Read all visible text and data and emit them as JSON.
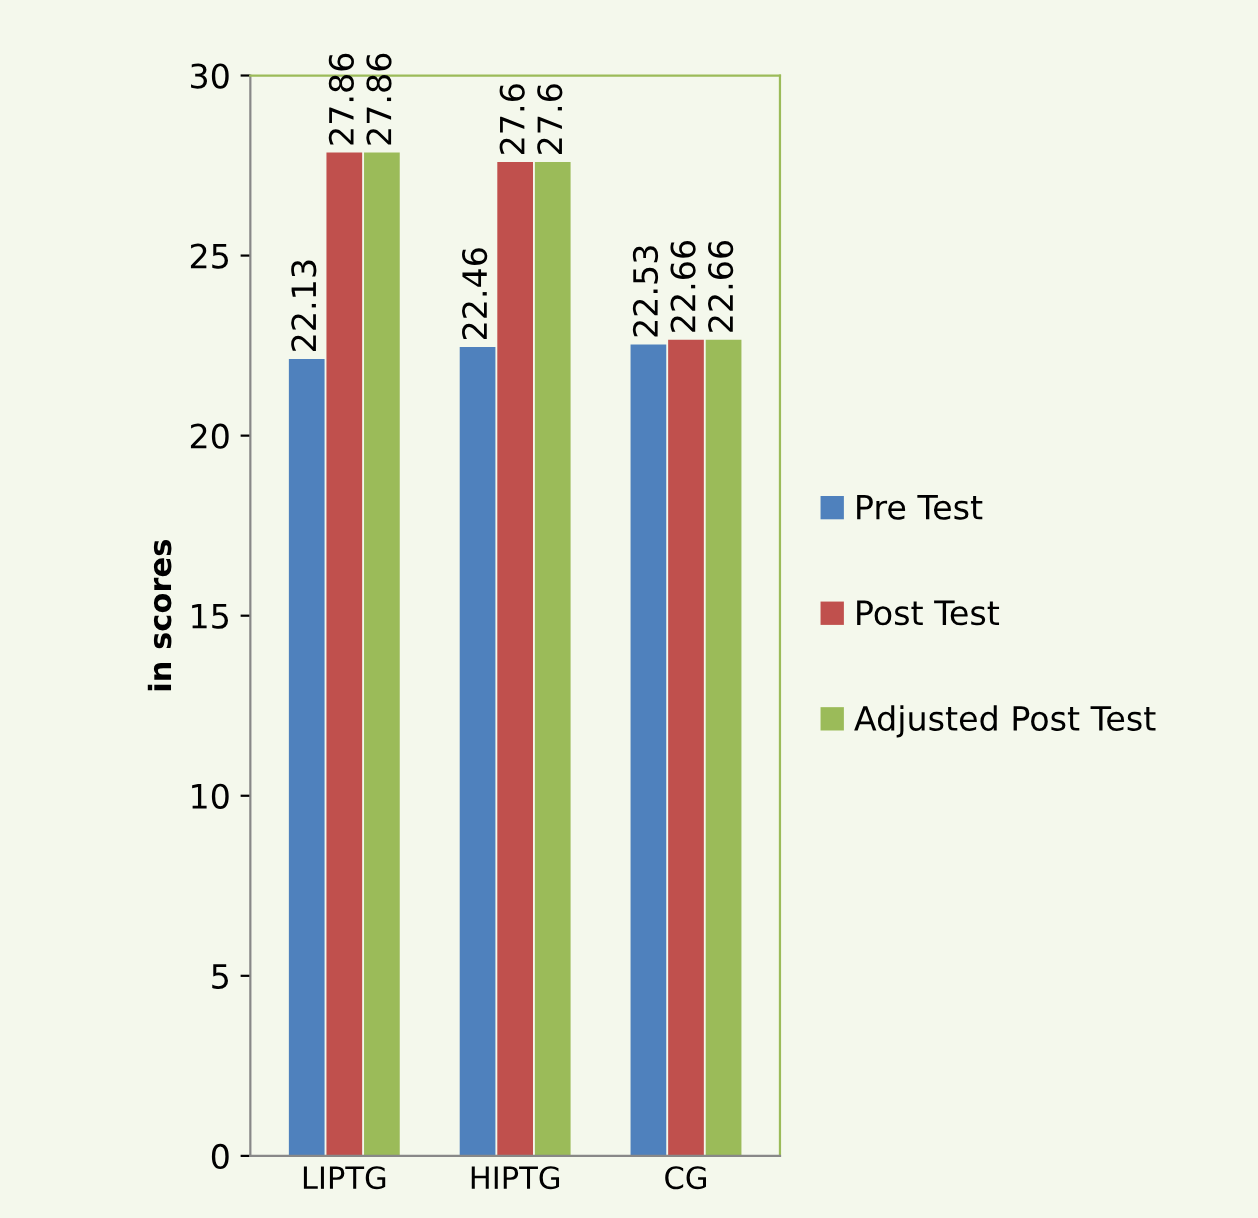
{
  "chart_data": {
    "type": "bar",
    "ylabel": "in scores",
    "categories": [
      "LIPTG",
      "HIPTG",
      "CG"
    ],
    "series": [
      {
        "name": "Pre Test",
        "color": "#4f81bd",
        "values": [
          22.13,
          22.46,
          22.53
        ]
      },
      {
        "name": "Post Test",
        "color": "#c0504d",
        "values": [
          27.86,
          27.6,
          22.66
        ]
      },
      {
        "name": "Adjusted Post Test",
        "color": "#9bbb59",
        "values": [
          27.86,
          27.6,
          22.66
        ]
      }
    ],
    "ylim": [
      0,
      30
    ],
    "yticks": [
      0,
      5,
      10,
      15,
      20,
      25,
      30
    ],
    "grid": false,
    "legend": "right",
    "data_labels": true
  }
}
